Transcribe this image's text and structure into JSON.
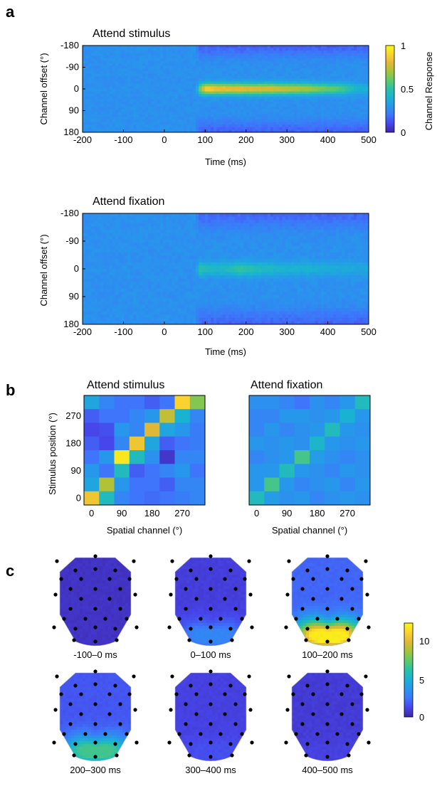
{
  "panels": {
    "a": "a",
    "b": "b",
    "c": "c"
  },
  "colormap": [
    "#3e26a8",
    "#4746eb",
    "#3e75fb",
    "#2797eb",
    "#1ab2d3",
    "#2ac1a7",
    "#60c96a",
    "#a5c43a",
    "#e1b836",
    "#fbd32f",
    "#f9fb0e"
  ],
  "chart_data": [
    {
      "id": "a-top",
      "type": "heatmap",
      "title": "Attend stimulus",
      "xlabel": "Time (ms)",
      "ylabel": "Channel offset (°)",
      "xlim": [
        -200,
        500
      ],
      "ylim": [
        -180,
        180
      ],
      "xticks": [
        "-200",
        "-100",
        "0",
        "100",
        "200",
        "300",
        "400",
        "500"
      ],
      "yticks": [
        "-180",
        "-90",
        "0",
        "90",
        "180"
      ],
      "zlim": [
        0,
        1
      ],
      "baseline": 0.28,
      "onset_ms": 75,
      "peak_profile_ms": [
        75,
        100,
        130,
        160,
        200,
        250,
        300,
        350,
        400,
        430,
        470,
        500
      ],
      "peak_profile_value": [
        0.38,
        0.9,
        0.86,
        0.84,
        0.82,
        0.8,
        0.76,
        0.7,
        0.62,
        0.58,
        0.42,
        0.4
      ],
      "suppression": 0.12
    },
    {
      "id": "a-bottom",
      "type": "heatmap",
      "title": "Attend fixation",
      "xlabel": "Time (ms)",
      "ylabel": "Channel offset (°)",
      "xlim": [
        -200,
        500
      ],
      "ylim": [
        -180,
        180
      ],
      "xticks": [
        "-200",
        "-100",
        "0",
        "100",
        "200",
        "300",
        "400",
        "500"
      ],
      "yticks": [
        "-180",
        "-90",
        "0",
        "90",
        "180"
      ],
      "zlim": [
        0,
        1
      ],
      "baseline": 0.28,
      "onset_ms": 75,
      "peak_profile_ms": [
        75,
        85,
        110,
        150,
        190,
        230,
        280,
        350,
        420,
        500
      ],
      "peak_profile_value": [
        0.36,
        0.52,
        0.44,
        0.45,
        0.52,
        0.46,
        0.42,
        0.4,
        0.38,
        0.36
      ],
      "suppression": 0.11
    },
    {
      "id": "b-left",
      "type": "heatmap",
      "title": "Attend stimulus",
      "xlabel": "Spatial channel (°)",
      "ylabel": "Stimulus position (°)",
      "xticks": [
        "0",
        "90",
        "180",
        "270"
      ],
      "yticks": [
        "0",
        "90",
        "180",
        "270"
      ],
      "zlim": [
        0,
        1
      ],
      "matrix": [
        [
          0.35,
          0.25,
          0.2,
          0.2,
          0.15,
          0.2,
          0.9,
          0.65
        ],
        [
          0.15,
          0.2,
          0.2,
          0.25,
          0.3,
          0.75,
          0.4,
          0.25
        ],
        [
          0.1,
          0.12,
          0.3,
          0.25,
          0.8,
          0.35,
          0.3,
          0.22
        ],
        [
          0.15,
          0.1,
          0.25,
          0.85,
          0.35,
          0.15,
          0.2,
          0.22
        ],
        [
          0.2,
          0.3,
          0.95,
          0.45,
          0.28,
          0.05,
          0.25,
          0.25
        ],
        [
          0.3,
          0.2,
          0.45,
          0.15,
          0.2,
          0.25,
          0.3,
          0.2
        ],
        [
          0.35,
          0.72,
          0.3,
          0.2,
          0.2,
          0.15,
          0.25,
          0.25
        ],
        [
          0.85,
          0.45,
          0.25,
          0.2,
          0.18,
          0.2,
          0.22,
          0.25
        ]
      ]
    },
    {
      "id": "b-right",
      "type": "heatmap",
      "title": "Attend fixation",
      "xlabel": "Spatial channel (°)",
      "ylabel": "",
      "xticks": [
        "0",
        "90",
        "180",
        "270"
      ],
      "yticks": [],
      "zlim": [
        0,
        1
      ],
      "matrix": [
        [
          0.28,
          0.28,
          0.25,
          0.2,
          0.28,
          0.25,
          0.3,
          0.45
        ],
        [
          0.25,
          0.25,
          0.3,
          0.3,
          0.28,
          0.3,
          0.4,
          0.3
        ],
        [
          0.25,
          0.3,
          0.25,
          0.28,
          0.3,
          0.45,
          0.3,
          0.28
        ],
        [
          0.3,
          0.28,
          0.3,
          0.28,
          0.42,
          0.3,
          0.28,
          0.3
        ],
        [
          0.25,
          0.28,
          0.3,
          0.55,
          0.32,
          0.28,
          0.25,
          0.28
        ],
        [
          0.3,
          0.3,
          0.45,
          0.3,
          0.28,
          0.25,
          0.3,
          0.28
        ],
        [
          0.3,
          0.55,
          0.3,
          0.25,
          0.28,
          0.3,
          0.25,
          0.3
        ],
        [
          0.45,
          0.32,
          0.28,
          0.3,
          0.25,
          0.28,
          0.3,
          0.28
        ]
      ]
    },
    {
      "id": "c",
      "type": "heatmap",
      "title": "",
      "zlim": [
        0,
        12
      ],
      "cbar_ticks": [
        "0",
        "5",
        "10"
      ],
      "maps": [
        {
          "label": "-100–0 ms",
          "base": 0.5,
          "peak": 0.5
        },
        {
          "label": "0–100 ms",
          "base": 0.9,
          "peak": 3.0
        },
        {
          "label": "100–200 ms",
          "base": 2.0,
          "peak": 11.5
        },
        {
          "label": "200–300 ms",
          "base": 1.6,
          "peak": 6.5
        },
        {
          "label": "300–400 ms",
          "base": 1.0,
          "peak": 1.4
        },
        {
          "label": "400–500 ms",
          "base": 0.8,
          "peak": 1.0
        }
      ]
    }
  ],
  "colorbars": {
    "a": {
      "label": "Channel Response",
      "ticks": [
        "0",
        "0.5",
        "1"
      ]
    }
  }
}
